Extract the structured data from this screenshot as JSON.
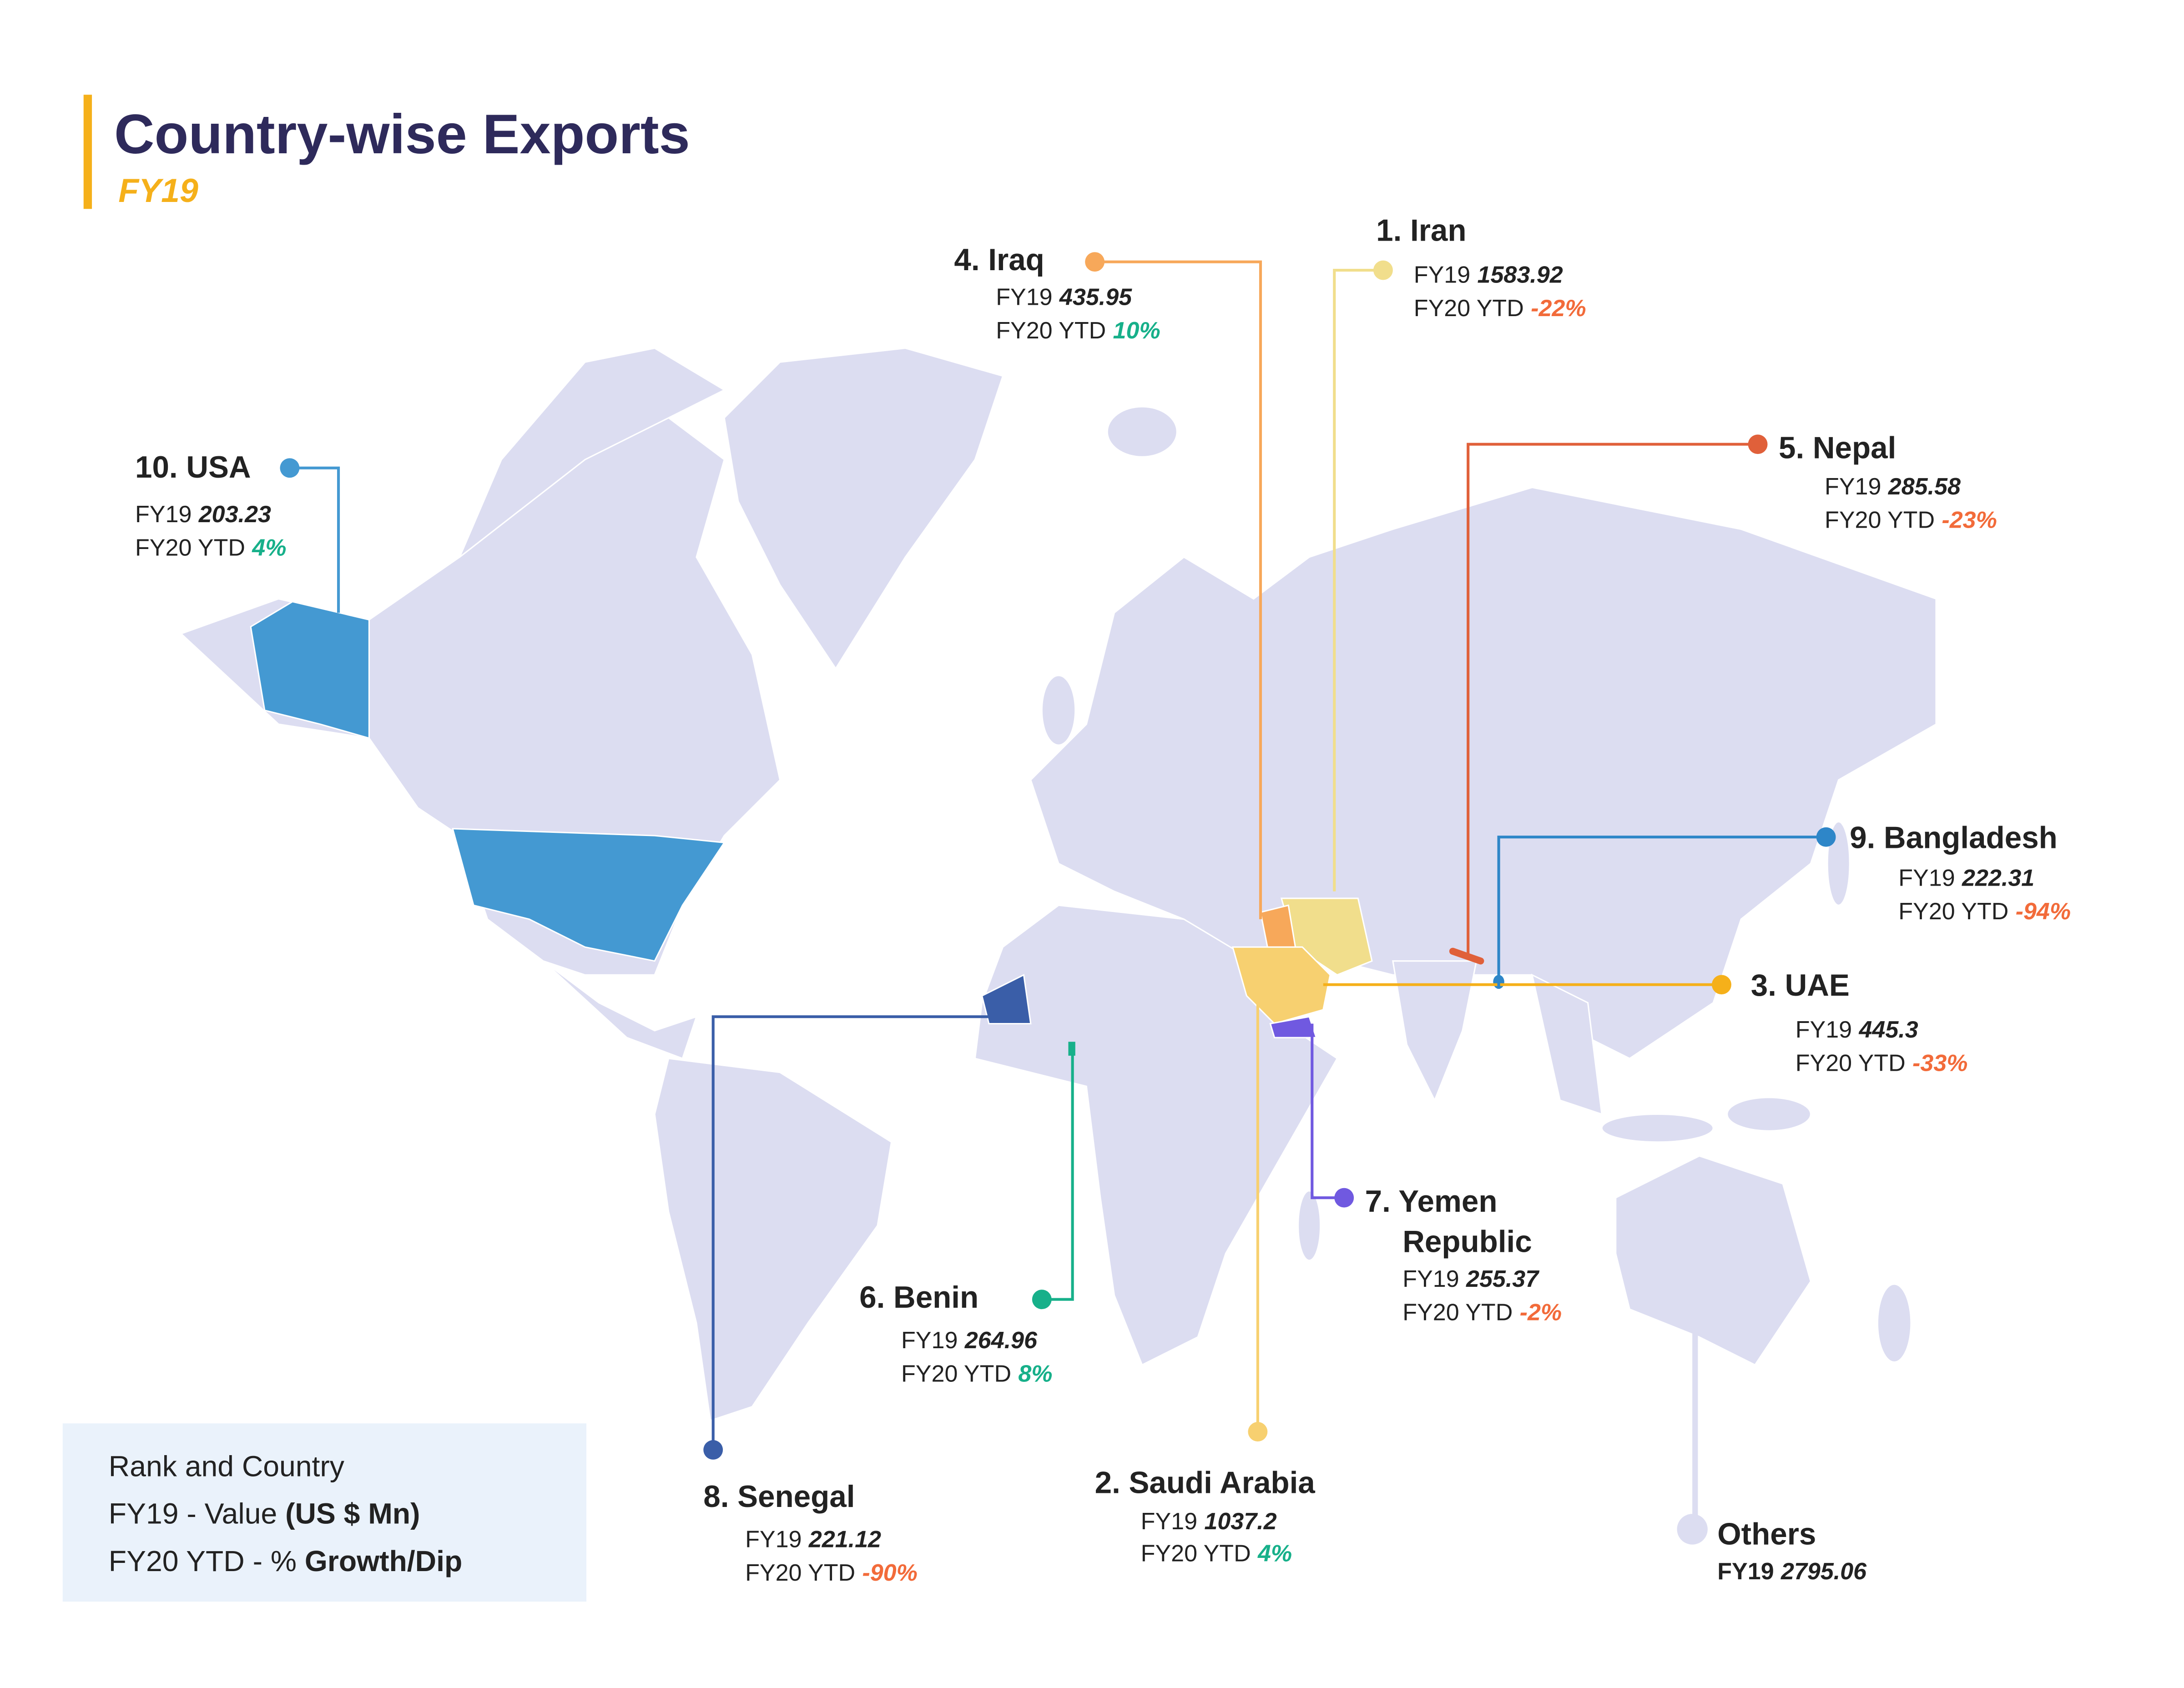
{
  "title": "Country-wise Exports",
  "subtitle": "FY19",
  "countries": [
    {
      "name": "1. Iran",
      "fy19_label": "FY19",
      "fy19": "1583.92",
      "fy20_label": "FY20 YTD",
      "fy20": "-22%",
      "color": "#f1de8c",
      "growth_color": "#f26b3a"
    },
    {
      "name": "2. Saudi Arabia",
      "fy19_label": "FY19",
      "fy19": "1037.2",
      "fy20_label": "FY20 YTD",
      "fy20": "4%",
      "color": "#f7d070",
      "growth_color": "#17b08a"
    },
    {
      "name": "3. UAE",
      "fy19_label": "FY19",
      "fy19": "445.3",
      "fy20_label": "FY20 YTD",
      "fy20": "-33%",
      "color": "#f5b01a",
      "growth_color": "#f26b3a"
    },
    {
      "name": "4. Iraq",
      "fy19_label": "FY19",
      "fy19": "435.95",
      "fy20_label": "FY20 YTD",
      "fy20": "10%",
      "color": "#f7a85a",
      "growth_color": "#17b08a"
    },
    {
      "name": "5. Nepal",
      "fy19_label": "FY19",
      "fy19": "285.58",
      "fy20_label": "FY20 YTD",
      "fy20": "-23%",
      "color": "#e0603a",
      "growth_color": "#f26b3a"
    },
    {
      "name": "6. Benin",
      "fy19_label": "FY19",
      "fy19": "264.96",
      "fy20_label": "FY20 YTD",
      "fy20": "8%",
      "color": "#17b08a",
      "growth_color": "#17b08a"
    },
    {
      "name": "7. Yemen",
      "name_line2": "Republic",
      "fy19_label": "FY19",
      "fy19": "255.37",
      "fy20_label": "FY20 YTD",
      "fy20": "-2%",
      "color": "#7059e0",
      "growth_color": "#f26b3a"
    },
    {
      "name": "8. Senegal",
      "fy19_label": "FY19",
      "fy19": "221.12",
      "fy20_label": "FY20 YTD",
      "fy20": "-90%",
      "color": "#3a5ea8",
      "growth_color": "#f26b3a"
    },
    {
      "name": "9. Bangladesh",
      "fy19_label": "FY19",
      "fy19": "222.31",
      "fy20_label": "FY20 YTD",
      "fy20": "-94%",
      "color": "#2e86c8",
      "growth_color": "#f26b3a"
    },
    {
      "name": "10. USA",
      "fy19_label": "FY19",
      "fy19": "203.23",
      "fy20_label": "FY20 YTD",
      "fy20": "4%",
      "color": "#4499d2",
      "growth_color": "#17b08a"
    }
  ],
  "others": {
    "name": "Others",
    "fy19_label": "FY19",
    "fy19": "2795.06",
    "color": "#dcddf1"
  },
  "legend": {
    "line1": "Rank and Country",
    "line2_a": "FY19 - Value ",
    "line2_b": "(US $ Mn)",
    "line3_a": "FY20 YTD - % ",
    "line3_b": "Growth/Dip"
  }
}
